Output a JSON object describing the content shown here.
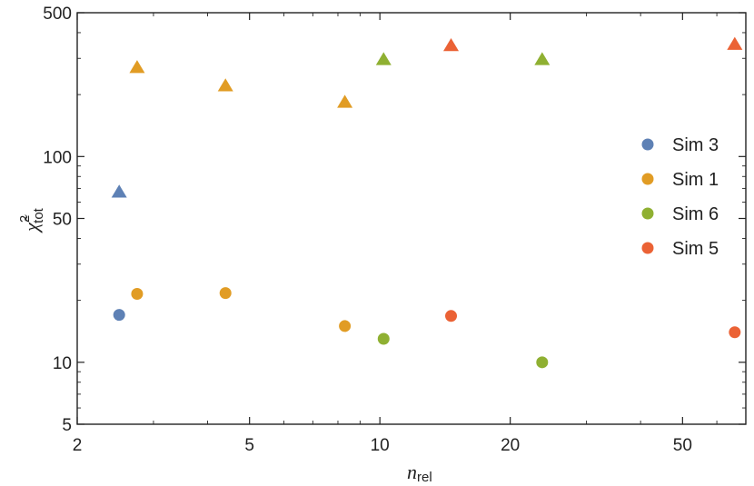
{
  "chart_data": {
    "type": "scatter",
    "title": "",
    "xlabel": "n",
    "xlabel_sub": "rel",
    "ylabel": "χ̃",
    "ylabel_sup": "2",
    "ylabel_sub": "tot",
    "xscale": "log",
    "yscale": "log",
    "xlim": [
      2,
      70
    ],
    "ylim": [
      5,
      500
    ],
    "xticks": [
      2,
      5,
      10,
      20,
      50
    ],
    "yticks": [
      5,
      10,
      50,
      100,
      500
    ],
    "grid": false,
    "legend_position": "right",
    "marker_shapes": [
      "triangle",
      "circle"
    ],
    "series": [
      {
        "name": "Sim 3",
        "color": "#5E81B5",
        "triangle": [
          {
            "x": 2.5,
            "y": 67
          }
        ],
        "circle": [
          {
            "x": 2.5,
            "y": 17
          }
        ]
      },
      {
        "name": "Sim 1",
        "color": "#E19C24",
        "triangle": [
          {
            "x": 2.75,
            "y": 270
          },
          {
            "x": 4.4,
            "y": 220
          },
          {
            "x": 8.3,
            "y": 183
          }
        ],
        "circle": [
          {
            "x": 2.75,
            "y": 21.5
          },
          {
            "x": 4.4,
            "y": 21.7
          },
          {
            "x": 8.3,
            "y": 15
          }
        ]
      },
      {
        "name": "Sim 6",
        "color": "#8FB032",
        "triangle": [
          {
            "x": 10.2,
            "y": 295
          },
          {
            "x": 23.7,
            "y": 295
          }
        ],
        "circle": [
          {
            "x": 10.2,
            "y": 13
          },
          {
            "x": 23.7,
            "y": 10
          }
        ]
      },
      {
        "name": "Sim 5",
        "color": "#EB6235",
        "triangle": [
          {
            "x": 14.6,
            "y": 345
          },
          {
            "x": 66,
            "y": 350
          }
        ],
        "circle": [
          {
            "x": 14.6,
            "y": 16.8
          },
          {
            "x": 66,
            "y": 14
          }
        ]
      }
    ]
  }
}
